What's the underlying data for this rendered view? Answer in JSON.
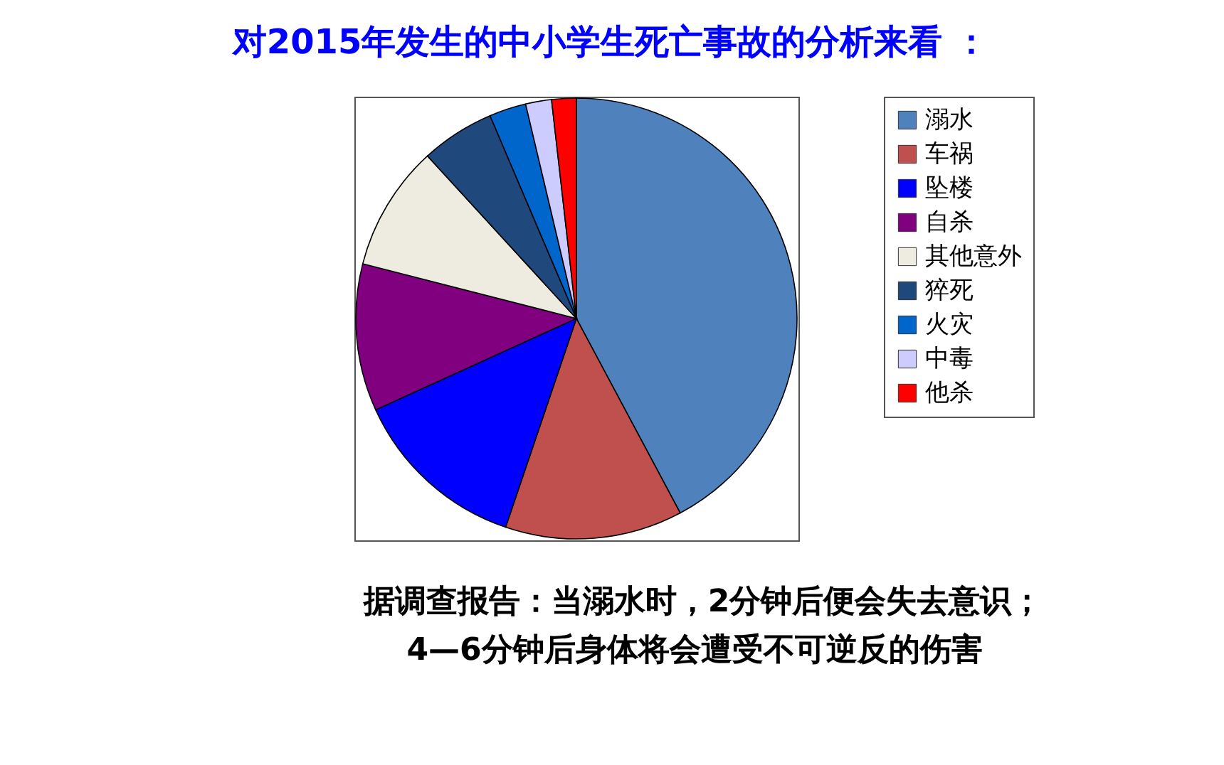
{
  "chart_data": {
    "type": "pie",
    "title": "对2015年发生的中小学生死亡事故的分析来看 ：",
    "categories": [
      "溺水",
      "车祸",
      "坠楼",
      "自杀",
      "其他意外",
      "猝死",
      "火灾",
      "中毒",
      "他杀"
    ],
    "values": [
      42.2,
      13,
      13,
      10.8,
      9.2,
      5.4,
      2.7,
      1.9,
      1.8
    ],
    "colors": [
      "#4f81bd",
      "#c0504d",
      "#0000ff",
      "#800080",
      "#eeece1",
      "#1f497d",
      "#0066cc",
      "#ccccff",
      "#ff0000"
    ],
    "legend": "right",
    "annotations": [
      "据调查报告：当溺水时，2分钟后便会失去意识；",
      "4—6分钟后身体将会遭受不可逆反的伤害"
    ]
  }
}
